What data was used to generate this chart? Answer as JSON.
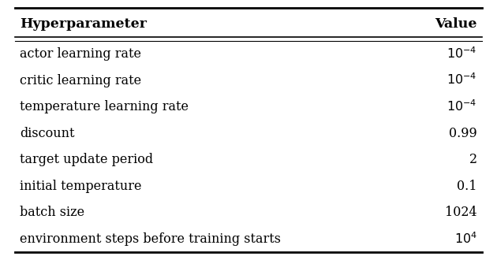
{
  "headers": [
    "Hyperparameter",
    "Value"
  ],
  "rows": [
    [
      "actor learning rate",
      "$10^{-4}$"
    ],
    [
      "critic learning rate",
      "$10^{-4}$"
    ],
    [
      "temperature learning rate",
      "$10^{-4}$"
    ],
    [
      "discount",
      "0.99"
    ],
    [
      "target update period",
      "2"
    ],
    [
      "initial temperature",
      "0.1"
    ],
    [
      "batch size",
      "1024"
    ],
    [
      "environment steps before training starts",
      "$10^{4}$"
    ]
  ],
  "bg_color": "#ffffff",
  "text_color": "#000000",
  "font_size": 11.5,
  "header_font_size": 12.5
}
